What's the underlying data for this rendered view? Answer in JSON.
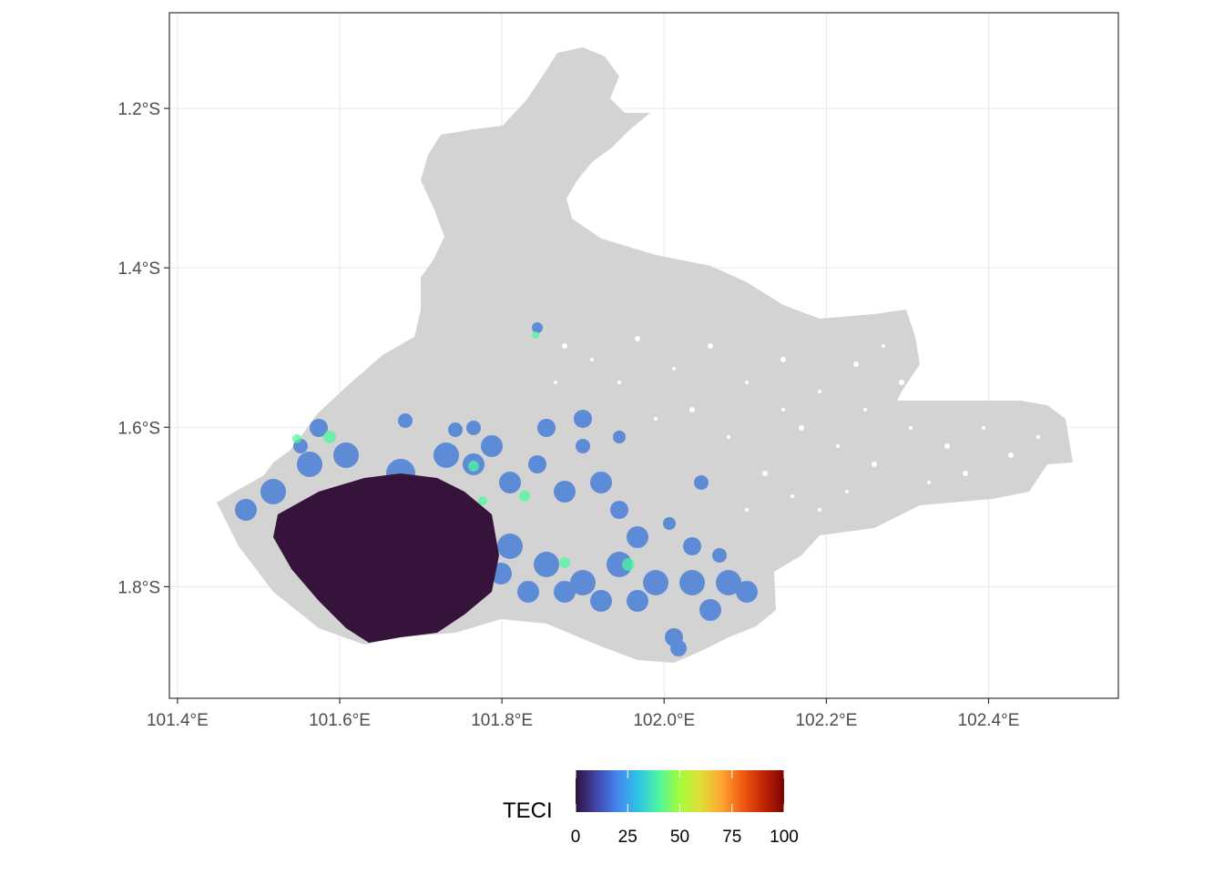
{
  "map": {
    "x_axis": {
      "ticks": [
        {
          "value": 101.4,
          "label": "101.4°E"
        },
        {
          "value": 101.6,
          "label": "101.6°E"
        },
        {
          "value": 101.8,
          "label": "101.8°E"
        },
        {
          "value": 102.0,
          "label": "102.0°E"
        },
        {
          "value": 102.2,
          "label": "102.2°E"
        },
        {
          "value": 102.4,
          "label": "102.4°E"
        }
      ],
      "range": [
        101.39,
        102.56
      ]
    },
    "y_axis": {
      "ticks": [
        {
          "value": -1.2,
          "label": "1.2°S"
        },
        {
          "value": -1.4,
          "label": "1.4°S"
        },
        {
          "value": -1.6,
          "label": "1.6°S"
        },
        {
          "value": -1.8,
          "label": "1.8°S"
        }
      ],
      "range": [
        -1.08,
        -1.94
      ]
    },
    "region_fill": "#d3d3d3",
    "high_density_fill": "#35133a",
    "grid": true
  },
  "legend": {
    "title": "TECI",
    "position": "bottom",
    "ticks": [
      {
        "value": 0,
        "label": "0"
      },
      {
        "value": 25,
        "label": "25"
      },
      {
        "value": 50,
        "label": "50"
      },
      {
        "value": 75,
        "label": "75"
      },
      {
        "value": 100,
        "label": "100"
      }
    ],
    "range": [
      0,
      100
    ],
    "colors": [
      "#30123b",
      "#4145ab",
      "#4686f0",
      "#2ec3e5",
      "#4ff7a0",
      "#a4fc3b",
      "#e1dd37",
      "#fea632",
      "#f05b12",
      "#c42503",
      "#7a0403"
    ]
  }
}
